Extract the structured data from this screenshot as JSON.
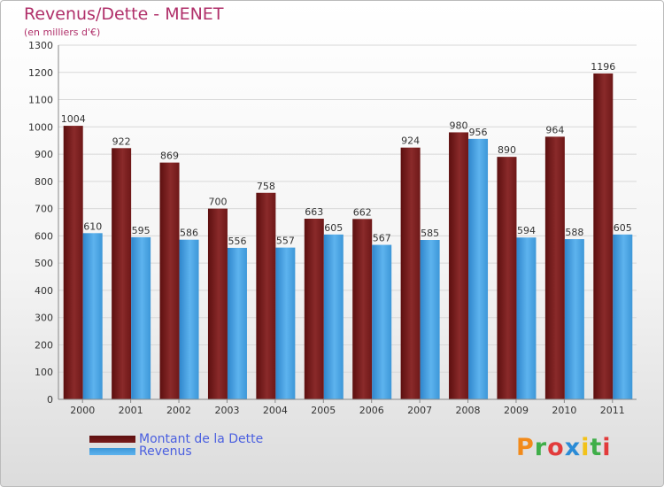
{
  "chart_data": {
    "type": "bar",
    "title": "Revenus/Dette - MENET",
    "subtitle": "(en milliers d'€)",
    "xlabel": "",
    "ylabel": "",
    "categories": [
      "2000",
      "2001",
      "2002",
      "2003",
      "2004",
      "2005",
      "2006",
      "2007",
      "2008",
      "2009",
      "2010",
      "2011"
    ],
    "series": [
      {
        "name": "Montant de la Dette",
        "color": "#7a1c1c",
        "values": [
          1004,
          922,
          869,
          700,
          758,
          663,
          662,
          924,
          980,
          890,
          964,
          1196
        ]
      },
      {
        "name": "Revenus",
        "color": "#4aa3e4",
        "values": [
          610,
          595,
          586,
          556,
          557,
          605,
          567,
          585,
          956,
          594,
          588,
          605
        ]
      }
    ],
    "ylim": [
      0,
      1300
    ],
    "yticks": [
      0,
      100,
      200,
      300,
      400,
      500,
      600,
      700,
      800,
      900,
      1000,
      1100,
      1200,
      1300
    ],
    "grid": true,
    "legend_position": "bottom-left"
  },
  "branding": {
    "logo_text": "Proxiti"
  }
}
